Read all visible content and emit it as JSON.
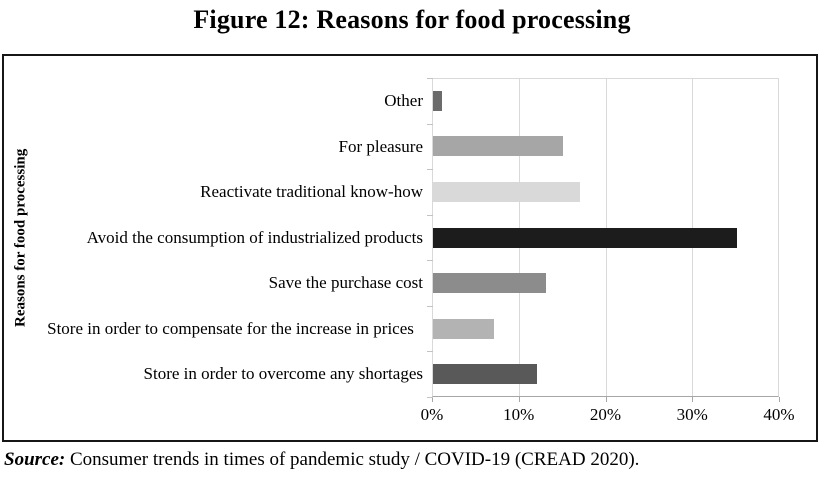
{
  "title": "Figure 12: Reasons for food processing",
  "source": {
    "label": "Source:",
    "text": " Consumer trends in times of pandemic study / COVID-19 (CREAD 2020)."
  },
  "chart_data": {
    "type": "bar",
    "orientation": "horizontal",
    "title": "Figure 12: Reasons for food processing",
    "ylabel": "Reasons for food processing",
    "xlabel": "",
    "categories": [
      "Other",
      "For pleasure",
      "Reactivate traditional know-how",
      "Avoid the consumption of industrialized products",
      "Save the purchase cost",
      "Store in order to compensate for the increase in prices",
      "Store in order to overcome any shortages"
    ],
    "values": [
      1,
      15,
      17,
      35,
      13,
      7,
      12
    ],
    "unit": "%",
    "xlim": [
      0,
      40
    ],
    "x_ticks": [
      "0%",
      "10%",
      "20%",
      "30%",
      "40%"
    ],
    "bar_colors": [
      "#6b6b6b",
      "#a6a6a6",
      "#d9d9d9",
      "#1c1c1c",
      "#8c8c8c",
      "#b3b3b3",
      "#595959"
    ],
    "grid": true,
    "gridline_color": "#d9d9d9",
    "legend": "none"
  }
}
